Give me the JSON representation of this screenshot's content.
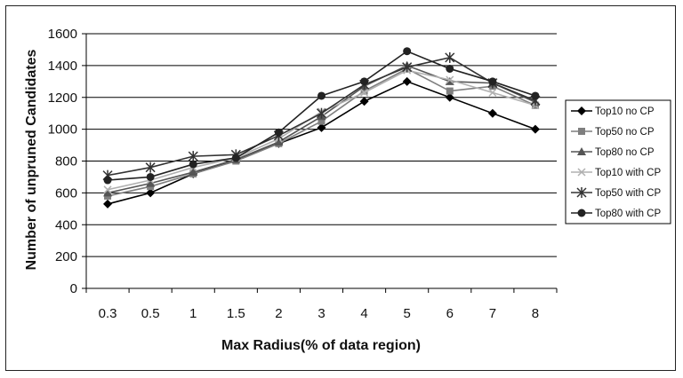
{
  "chart_data": {
    "type": "line",
    "title": "",
    "xlabel": "Max Radius(% of data region)",
    "ylabel": "Number of unpruned Candidates",
    "categories": [
      "0.3",
      "0.5",
      "1",
      "1.5",
      "2",
      "3",
      "4",
      "5",
      "6",
      "7",
      "8"
    ],
    "yticks": [
      "0",
      "200",
      "400",
      "600",
      "800",
      "1000",
      "1200",
      "1400",
      "1600"
    ],
    "ylim": [
      0,
      1600
    ],
    "grid": true,
    "legend_position": "right",
    "series": [
      {
        "name": "Top10 no CP",
        "marker": "diamond",
        "color": "#000000",
        "values": [
          530,
          600,
          720,
          810,
          910,
          1010,
          1175,
          1300,
          1200,
          1100,
          1000
        ]
      },
      {
        "name": "Top50 no CP",
        "marker": "square",
        "color": "#7f7f7f",
        "values": [
          580,
          640,
          720,
          800,
          910,
          1050,
          1240,
          1380,
          1240,
          1270,
          1150
        ]
      },
      {
        "name": "Top80 no CP",
        "marker": "triangle",
        "color": "#555555",
        "values": [
          600,
          660,
          730,
          810,
          920,
          1080,
          1270,
          1400,
          1300,
          1290,
          1170
        ]
      },
      {
        "name": "Top10 with CP",
        "marker": "x",
        "color": "#b0b0b0",
        "values": [
          620,
          680,
          760,
          820,
          940,
          1110,
          1230,
          1370,
          1310,
          1230,
          1150
        ]
      },
      {
        "name": "Top50 with CP",
        "marker": "star",
        "color": "#333333",
        "values": [
          710,
          760,
          830,
          840,
          960,
          1100,
          1280,
          1390,
          1450,
          1290,
          1180
        ]
      },
      {
        "name": "Top80 with CP",
        "marker": "circle",
        "color": "#222222",
        "values": [
          680,
          700,
          780,
          820,
          980,
          1210,
          1300,
          1490,
          1380,
          1300,
          1210
        ]
      }
    ]
  }
}
